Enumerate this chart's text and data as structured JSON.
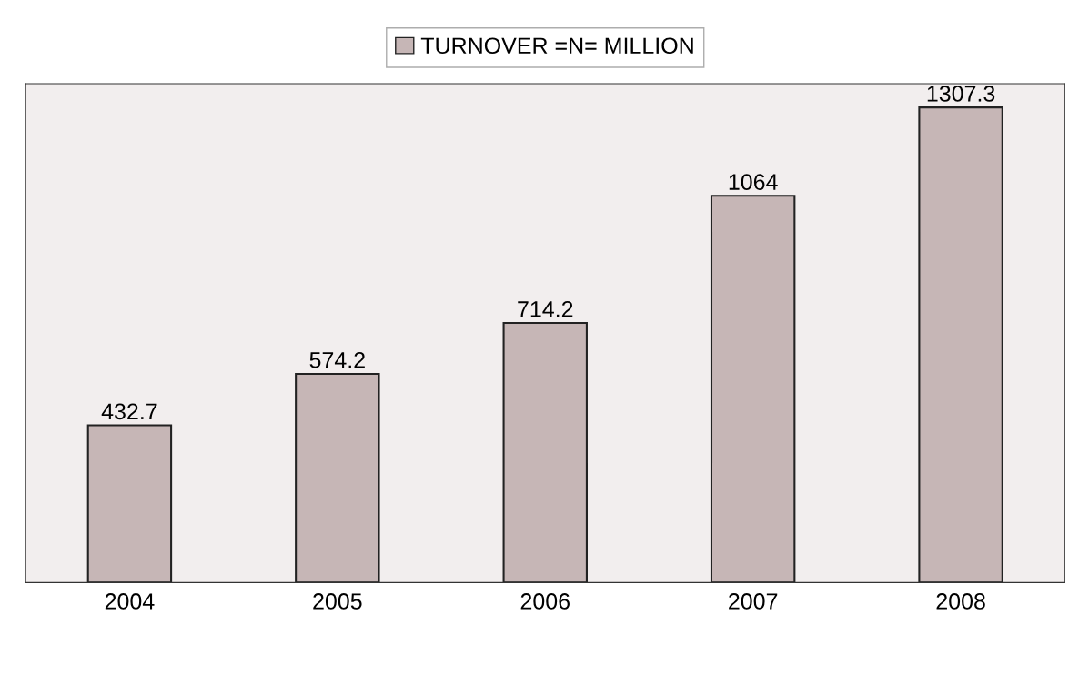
{
  "chart_data": {
    "type": "bar",
    "categories": [
      "2004",
      "2005",
      "2006",
      "2007",
      "2008"
    ],
    "series": [
      {
        "name": "TURNOVER =N= MILLION",
        "color": "#c6b6b6",
        "values": [
          432.7,
          574.2,
          714.2,
          1064,
          1307.3
        ]
      }
    ],
    "data_labels": true,
    "legend": "top",
    "grid": false,
    "tick_labels": "x"
  }
}
